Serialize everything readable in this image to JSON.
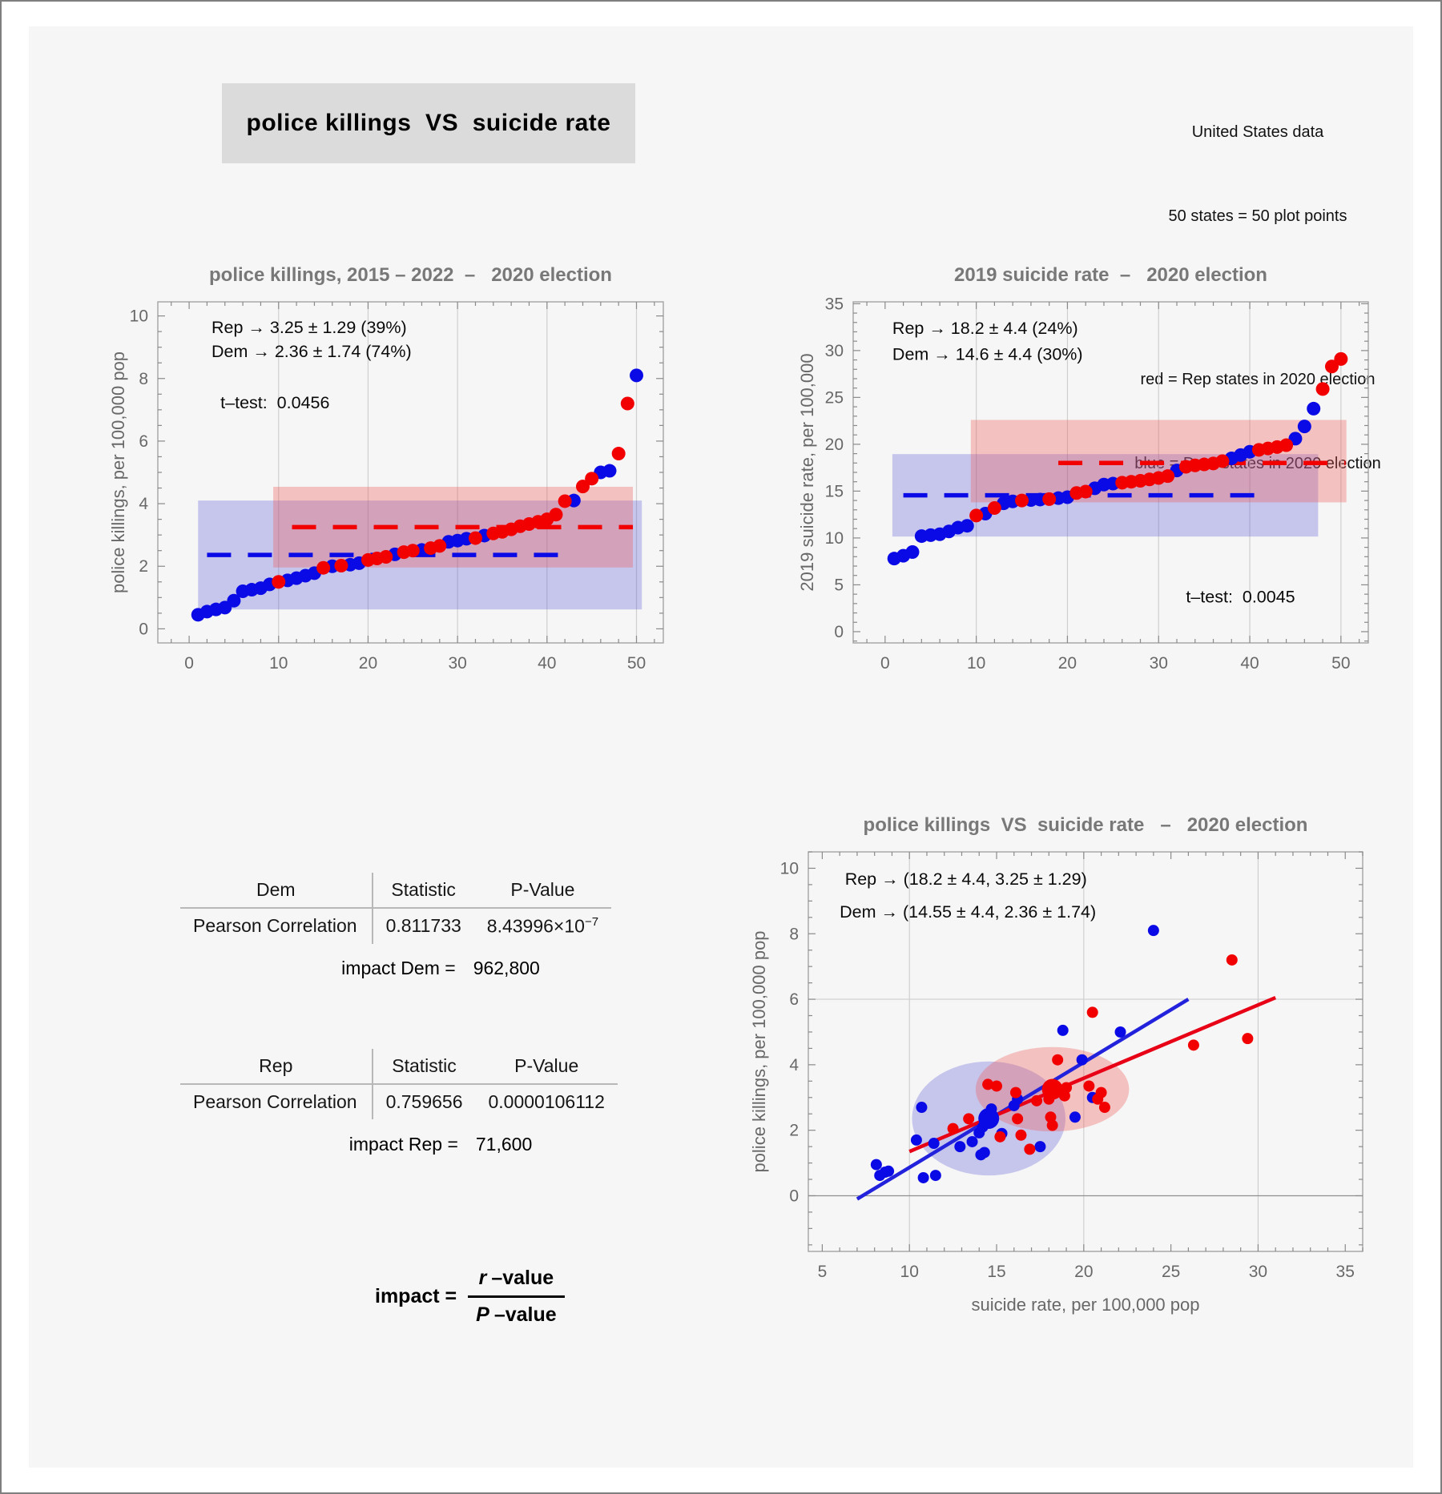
{
  "header": {
    "title": "police killings  VS  suicide rate",
    "note_lines": [
      "United States data",
      "50 states = 50 plot points",
      "red = Rep states in 2020 election",
      "blue = Dem states in 2020 election"
    ]
  },
  "colors": {
    "dem": "#0a0ae6",
    "rep": "#f20000",
    "dem_band": "rgba(85,85,215,0.30)",
    "rep_band": "rgba(240,85,85,0.33)",
    "dem_fit": "#2222dd",
    "rep_fit": "#e80016",
    "frame": "#a3a3a3",
    "grid": "#cfcfcf",
    "grid_dark": "#8f8f8f",
    "tick": "#8a8a8a",
    "title": "#787878",
    "axis_label": "#686868",
    "tick_label": "#686868",
    "annotation": "#0a0a0a"
  },
  "stats": {
    "dem": {
      "group": "Dem",
      "col_statistic": "Statistic",
      "col_pvalue": "P-Value",
      "row_label": "Pearson Correlation",
      "statistic": "0.811733",
      "pvalue_mantissa": "8.43996×10",
      "pvalue_exponent": "−7",
      "impact_label": "impact Dem =",
      "impact_value": "962,800"
    },
    "rep": {
      "group": "Rep",
      "col_statistic": "Statistic",
      "col_pvalue": "P-Value",
      "row_label": "Pearson Correlation",
      "statistic": "0.759656",
      "pvalue": "0.0000106112",
      "impact_label": "impact Rep =",
      "impact_value": "71,600"
    },
    "formula": {
      "lhs": "impact =",
      "numerator_var": "r",
      "numerator_rest": "–value",
      "denominator_var": "P",
      "denominator_rest": "–value"
    }
  },
  "chart_data": [
    {
      "type": "scatter",
      "title": "police killings, 2015 – 2022  –   2020 election",
      "ylabel": "police killings, per 100,000 pop",
      "xlim": [
        -3.5,
        53
      ],
      "ylim": [
        -0.45,
        10.45
      ],
      "xticks": [
        0,
        10,
        20,
        30,
        40,
        50
      ],
      "yticks": [
        0,
        2,
        4,
        6,
        8,
        10
      ],
      "xminor": 2,
      "yminor": 0.5,
      "gridx": [
        10,
        20,
        30,
        40,
        50
      ],
      "gridy": [],
      "bands": [
        {
          "x1": 1,
          "x2": 50.6,
          "y1": 0.62,
          "y2": 4.1,
          "color": "dem"
        },
        {
          "x1": 9.4,
          "x2": 49.6,
          "y1": 1.96,
          "y2": 4.54,
          "color": "rep"
        }
      ],
      "mean_lines": [
        {
          "y": 2.36,
          "x1": 2,
          "x2": 42.5,
          "color": "dem"
        },
        {
          "y": 3.25,
          "x1": 11.5,
          "x2": 49.6,
          "color": "rep"
        }
      ],
      "annotations": [
        {
          "text": "Rep → 3.25 ± 1.29 (39%)",
          "x": 2.5,
          "y": 9.45
        },
        {
          "text": "Dem → 2.36 ± 1.74 (74%)",
          "x": 2.5,
          "y": 8.68
        },
        {
          "text": "t–test:  0.0456",
          "x": 3.5,
          "y": 7.05
        }
      ],
      "series": [
        {
          "name": "Dem",
          "color": "dem",
          "points": [
            [
              1,
              0.45
            ],
            [
              2,
              0.55
            ],
            [
              3,
              0.62
            ],
            [
              4,
              0.68
            ],
            [
              5,
              0.9
            ],
            [
              6,
              1.2
            ],
            [
              7,
              1.25
            ],
            [
              8,
              1.3
            ],
            [
              9,
              1.42
            ],
            [
              11,
              1.55
            ],
            [
              12,
              1.62
            ],
            [
              13,
              1.7
            ],
            [
              14,
              1.78
            ],
            [
              16,
              2.0
            ],
            [
              18,
              2.05
            ],
            [
              19,
              2.1
            ],
            [
              23,
              2.38
            ],
            [
              26,
              2.52
            ],
            [
              29,
              2.78
            ],
            [
              30,
              2.82
            ],
            [
              31,
              2.88
            ],
            [
              33,
              2.98
            ],
            [
              43,
              4.1
            ],
            [
              46,
              5.0
            ],
            [
              47,
              5.05
            ],
            [
              50,
              8.1
            ]
          ]
        },
        {
          "name": "Rep",
          "color": "rep",
          "points": [
            [
              10,
              1.5
            ],
            [
              15,
              1.95
            ],
            [
              17,
              2.02
            ],
            [
              20,
              2.2
            ],
            [
              21,
              2.25
            ],
            [
              22,
              2.3
            ],
            [
              24,
              2.45
            ],
            [
              25,
              2.5
            ],
            [
              27,
              2.58
            ],
            [
              28,
              2.65
            ],
            [
              32,
              2.9
            ],
            [
              34,
              3.05
            ],
            [
              35,
              3.1
            ],
            [
              36,
              3.18
            ],
            [
              37,
              3.28
            ],
            [
              38,
              3.35
            ],
            [
              39,
              3.42
            ],
            [
              40,
              3.5
            ],
            [
              41,
              3.65
            ],
            [
              42,
              4.08
            ],
            [
              44,
              4.55
            ],
            [
              45,
              4.8
            ],
            [
              48,
              5.6
            ],
            [
              49,
              7.2
            ]
          ]
        }
      ]
    },
    {
      "type": "scatter",
      "title": "2019 suicide rate  –   2020 election",
      "ylabel": "2019 suicide rate, per 100,000",
      "xlim": [
        -3.5,
        53
      ],
      "ylim": [
        -1.2,
        35.2
      ],
      "xticks": [
        0,
        10,
        20,
        30,
        40,
        50
      ],
      "yticks": [
        0,
        5,
        10,
        15,
        20,
        25,
        30,
        35
      ],
      "xminor": 2,
      "yminor": 1,
      "gridx": [
        10,
        20,
        30,
        40,
        50
      ],
      "gridy": [],
      "bands": [
        {
          "x1": 0.8,
          "x2": 47.5,
          "y1": 10.15,
          "y2": 18.95,
          "color": "dem"
        },
        {
          "x1": 9.4,
          "x2": 50.6,
          "y1": 13.8,
          "y2": 22.6,
          "color": "rep"
        }
      ],
      "mean_lines": [
        {
          "y": 14.55,
          "x1": 2,
          "x2": 40.5,
          "color": "dem"
        },
        {
          "y": 18.0,
          "x1": 19,
          "x2": 50.5,
          "color": "rep"
        }
      ],
      "annotations": [
        {
          "text": "Rep → 18.2 ± 4.4 (24%)",
          "x": 0.8,
          "y": 31.8
        },
        {
          "text": "Dem → 14.6 ± 4.4 (30%)",
          "x": 0.8,
          "y": 29.0
        },
        {
          "text": "t–test:  0.0045",
          "x": 33,
          "y": 3.1
        }
      ],
      "series": [
        {
          "name": "Dem",
          "color": "dem",
          "points": [
            [
              1,
              7.8
            ],
            [
              2,
              8.1
            ],
            [
              3,
              8.5
            ],
            [
              4,
              10.2
            ],
            [
              5,
              10.3
            ],
            [
              6,
              10.4
            ],
            [
              7,
              10.7
            ],
            [
              8,
              11.1
            ],
            [
              9,
              11.3
            ],
            [
              11,
              12.6
            ],
            [
              13,
              13.7
            ],
            [
              14,
              13.9
            ],
            [
              16,
              14.05
            ],
            [
              17,
              14.1
            ],
            [
              19,
              14.25
            ],
            [
              20,
              14.35
            ],
            [
              23,
              15.3
            ],
            [
              24,
              15.7
            ],
            [
              25,
              15.8
            ],
            [
              32,
              17.2
            ],
            [
              38,
              18.5
            ],
            [
              39,
              18.85
            ],
            [
              40,
              19.2
            ],
            [
              45,
              20.6
            ],
            [
              46,
              21.9
            ],
            [
              47,
              23.8
            ]
          ]
        },
        {
          "name": "Rep",
          "color": "rep",
          "points": [
            [
              10,
              12.4
            ],
            [
              12,
              13.2
            ],
            [
              15,
              14.0
            ],
            [
              18,
              14.15
            ],
            [
              21,
              14.8
            ],
            [
              22,
              14.95
            ],
            [
              26,
              15.9
            ],
            [
              27,
              16.0
            ],
            [
              28,
              16.1
            ],
            [
              29,
              16.25
            ],
            [
              30,
              16.4
            ],
            [
              31,
              16.6
            ],
            [
              33,
              17.6
            ],
            [
              34,
              17.75
            ],
            [
              35,
              17.85
            ],
            [
              36,
              17.95
            ],
            [
              37,
              18.2
            ],
            [
              41,
              19.4
            ],
            [
              42,
              19.55
            ],
            [
              43,
              19.7
            ],
            [
              44,
              19.9
            ],
            [
              48,
              25.9
            ],
            [
              49,
              28.3
            ],
            [
              50,
              29.1
            ]
          ]
        }
      ]
    },
    {
      "type": "scatter",
      "title": "police killings  VS  suicide rate   –   2020 election",
      "xlabel": "suicide rate, per 100,000 pop",
      "ylabel": "police killings, per 100,000 pop",
      "xlim": [
        4.2,
        36
      ],
      "ylim": [
        -1.7,
        10.5
      ],
      "xticks": [
        5,
        10,
        15,
        20,
        25,
        30,
        35
      ],
      "yticks": [
        0,
        2,
        4,
        6,
        8,
        10
      ],
      "xminor": 1,
      "yminor": 0.5,
      "gridx": [
        10,
        20,
        30
      ],
      "gridy": [
        {
          "v": 0,
          "dark": true
        },
        {
          "v": 6
        }
      ],
      "ellipses": [
        {
          "cx": 14.55,
          "cy": 2.36,
          "rx": 4.4,
          "ry": 1.74,
          "color": "dem"
        },
        {
          "cx": 18.2,
          "cy": 3.25,
          "rx": 4.4,
          "ry": 1.29,
          "color": "rep"
        }
      ],
      "fit_lines": [
        {
          "x1": 7,
          "y1": -0.1,
          "x2": 26,
          "y2": 6.0,
          "color": "dem"
        },
        {
          "x1": 10,
          "y1": 1.35,
          "x2": 31,
          "y2": 6.05,
          "color": "rep"
        }
      ],
      "mean_points": [
        {
          "x": 14.55,
          "y": 2.36,
          "color": "dem"
        },
        {
          "x": 18.2,
          "y": 3.25,
          "color": "rep"
        }
      ],
      "annotations": [
        {
          "text": "Rep → (18.2 ± 4.4, 3.25 ± 1.29)",
          "x": 6.3,
          "y": 9.5
        },
        {
          "text": "Dem → (14.55 ± 4.4, 2.36 ± 1.74)",
          "x": 6.0,
          "y": 8.5
        }
      ],
      "series": [
        {
          "name": "Dem",
          "color": "dem",
          "points": [
            [
              8.1,
              0.95
            ],
            [
              8.3,
              0.62
            ],
            [
              8.6,
              0.72
            ],
            [
              8.8,
              0.75
            ],
            [
              10.4,
              1.7
            ],
            [
              10.7,
              2.7
            ],
            [
              10.8,
              0.55
            ],
            [
              11.4,
              1.6
            ],
            [
              11.5,
              0.62
            ],
            [
              12.9,
              1.5
            ],
            [
              13.6,
              1.65
            ],
            [
              14.0,
              1.92
            ],
            [
              14.1,
              1.25
            ],
            [
              14.2,
              2.1
            ],
            [
              14.3,
              1.32
            ],
            [
              14.7,
              2.65
            ],
            [
              15.3,
              1.9
            ],
            [
              16.0,
              2.75
            ],
            [
              16.2,
              2.95
            ],
            [
              17.5,
              1.5
            ],
            [
              18.8,
              5.05
            ],
            [
              19.5,
              2.4
            ],
            [
              19.9,
              4.15
            ],
            [
              20.5,
              3.0
            ],
            [
              22.1,
              5.0
            ],
            [
              24.0,
              8.1
            ]
          ]
        },
        {
          "name": "Rep",
          "color": "rep",
          "points": [
            [
              12.5,
              2.05
            ],
            [
              13.4,
              2.35
            ],
            [
              14.5,
              3.4
            ],
            [
              15.0,
              3.35
            ],
            [
              15.2,
              1.8
            ],
            [
              16.1,
              3.15
            ],
            [
              16.2,
              2.35
            ],
            [
              16.4,
              1.85
            ],
            [
              16.9,
              1.42
            ],
            [
              17.3,
              2.9
            ],
            [
              18.0,
              2.95
            ],
            [
              18.1,
              2.4
            ],
            [
              18.2,
              2.15
            ],
            [
              18.5,
              4.15
            ],
            [
              18.9,
              3.05
            ],
            [
              19.0,
              3.3
            ],
            [
              20.3,
              3.35
            ],
            [
              20.5,
              5.6
            ],
            [
              20.8,
              2.95
            ],
            [
              21.0,
              3.15
            ],
            [
              21.2,
              2.7
            ],
            [
              26.3,
              4.6
            ],
            [
              28.5,
              7.2
            ],
            [
              29.4,
              4.8
            ]
          ]
        }
      ]
    }
  ]
}
